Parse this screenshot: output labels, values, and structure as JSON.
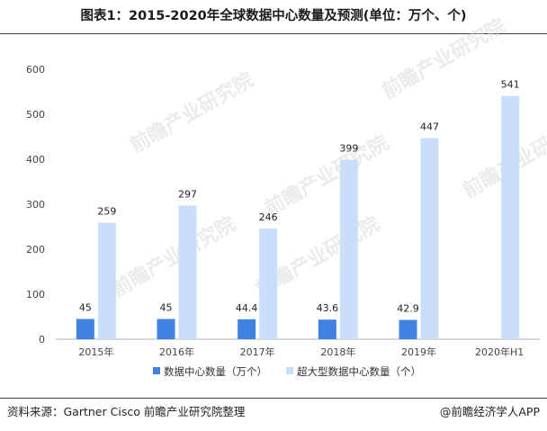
{
  "header": {
    "title": "图表1：2015-2020年全球数据中心数量及预测(单位：万个、个)"
  },
  "footer": {
    "source": "资料来源：Gartner Cisco 前瞻产业研究院整理",
    "brand": "@前瞻经济学人APP"
  },
  "watermark": "前瞻产业研究院",
  "colors": {
    "series1": "#3f82e2",
    "series2": "#c9def8"
  },
  "chart_data": {
    "type": "bar",
    "categories": [
      "2015年",
      "2016年",
      "2017年",
      "2018年",
      "2019年",
      "2020年H1"
    ],
    "series": [
      {
        "name": "数据中心数量（万个）",
        "values": [
          45,
          45,
          44.4,
          43.6,
          42.9,
          null
        ]
      },
      {
        "name": "超大型数据中心数量（个）",
        "values": [
          259,
          297,
          246,
          399,
          447,
          541
        ]
      }
    ],
    "ylim": [
      0,
      600
    ],
    "yticks": [
      0,
      100,
      200,
      300,
      400,
      500,
      600
    ],
    "grid": false,
    "legend_position": "bottom"
  }
}
